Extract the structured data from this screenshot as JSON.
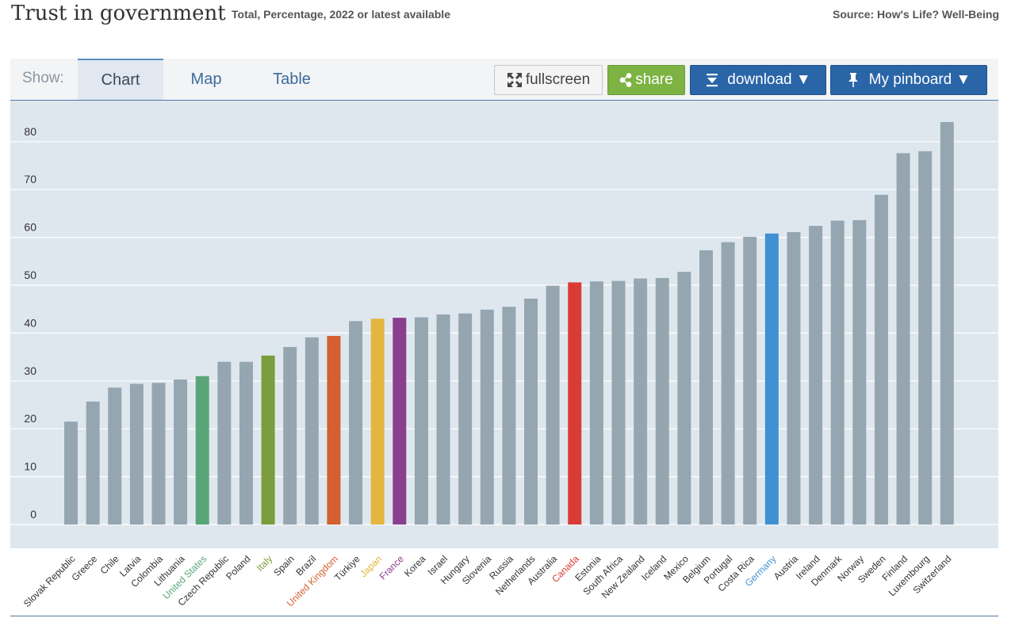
{
  "header": {
    "title": "Trust in government",
    "subtitle": "Total, Percentage, 2022 or latest available",
    "source": "Source: How's Life? Well-Being"
  },
  "toolbar": {
    "show_label": "Show:",
    "tabs": [
      {
        "label": "Chart",
        "active": true
      },
      {
        "label": "Map",
        "active": false
      },
      {
        "label": "Table",
        "active": false
      }
    ],
    "buttons": {
      "fullscreen": "fullscreen",
      "share": "share",
      "download": "download ▼",
      "pinboard": "My pinboard ▼"
    },
    "icons": {
      "fullscreen": "expand-arrows-icon",
      "share": "share-icon",
      "download": "download-icon",
      "pinboard": "pin-icon"
    }
  },
  "colors": {
    "default_bar": "#95a6b1",
    "gridline": "#ffffff",
    "plot_background": "#dfe7ee",
    "accent_blue": "#2a65a8",
    "share_green": "#7cb342"
  },
  "chart_data": {
    "type": "bar",
    "title": "Trust in government",
    "ylim": [
      0,
      85
    ],
    "yticks": [
      0,
      10,
      20,
      30,
      40,
      50,
      60,
      70,
      80
    ],
    "grid": true,
    "categories": [
      "Slovak Republic",
      "Greece",
      "Chile",
      "Latvia",
      "Colombia",
      "Lithuania",
      "United States",
      "Czech Republic",
      "Poland",
      "Italy",
      "Spain",
      "Brazil",
      "United Kingdom",
      "Türkiye",
      "Japan",
      "France",
      "Korea",
      "Israel",
      "Hungary",
      "Slovenia",
      "Russia",
      "Netherlands",
      "Australia",
      "Canada",
      "Estonia",
      "South Africa",
      "New Zealand",
      "Iceland",
      "Mexico",
      "Belgium",
      "Portugal",
      "Costa Rica",
      "Germany",
      "Austria",
      "Ireland",
      "Denmark",
      "Norway",
      "Sweden",
      "Finland",
      "Luxembourg",
      "Switzerland"
    ],
    "values": [
      21.5,
      25.7,
      28.6,
      29.4,
      29.6,
      30.3,
      31.0,
      34.0,
      34.0,
      35.3,
      37.1,
      39.1,
      39.4,
      42.5,
      43.0,
      43.2,
      43.3,
      43.9,
      44.1,
      44.9,
      45.5,
      47.2,
      49.9,
      50.6,
      50.8,
      50.9,
      51.4,
      51.5,
      52.8,
      57.3,
      59.0,
      60.1,
      60.8,
      61.1,
      62.4,
      63.5,
      63.6,
      68.9,
      77.6,
      78.0,
      84.1
    ],
    "highlight_colors": {
      "United States": "#59a578",
      "Italy": "#7a9c3c",
      "United Kingdom": "#d45f30",
      "Japan": "#e3b63f",
      "France": "#8a3f8d",
      "Canada": "#d93c35",
      "Germany": "#4090d4"
    }
  }
}
